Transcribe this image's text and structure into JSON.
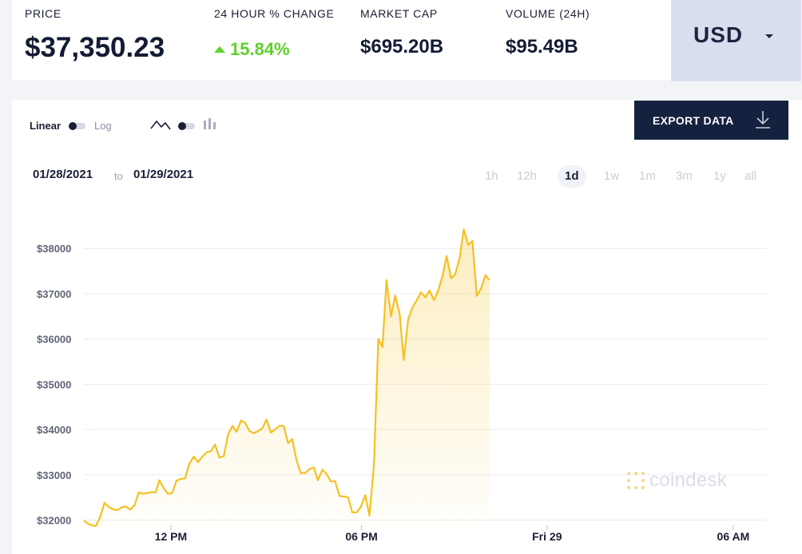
{
  "header": {
    "price_label": "PRICE",
    "price": "$37,350.23",
    "change_label": "24 HOUR % CHANGE",
    "change": "15.84%",
    "mcap_label": "MARKET CAP",
    "mcap": "$695.20B",
    "volume_label": "VOLUME (24H)",
    "volume": "$95.49B",
    "currency": "USD"
  },
  "controls": {
    "linear_label": "Linear",
    "log_label": "Log",
    "export_label": "EXPORT DATA",
    "date_from": "01/28/2021",
    "date_to_word": "to",
    "date_to": "01/29/2021",
    "periods": [
      "1h",
      "12h",
      "1d",
      "1w",
      "1m",
      "3m",
      "1y",
      "all"
    ],
    "active_period": "1d"
  },
  "colors": {
    "line": "#f5c022",
    "up": "#5ed12a",
    "export_bg": "#14213f"
  },
  "watermark": "coindesk",
  "chart_data": {
    "type": "line",
    "title": "",
    "xlabel": "",
    "ylabel": "",
    "y_ticks": [
      "$32000",
      "$33000",
      "$34000",
      "$35000",
      "$36000",
      "$37000",
      "$38000"
    ],
    "ylim": [
      31850,
      38550
    ],
    "x_ticks": [
      {
        "label": "12 PM",
        "x": 21.67
      },
      {
        "label": "06 PM",
        "x": 32.78
      },
      {
        "label": "Fri 29",
        "x": 43.59
      },
      {
        "label": "06 AM",
        "x": 54.44
      }
    ],
    "xlim": [
      16.6,
      56.4
    ],
    "grid": true,
    "series": [
      {
        "values": [
          [
            16.6,
            31990
          ],
          [
            16.84,
            31920
          ],
          [
            17.1,
            31880
          ],
          [
            17.3,
            31870
          ],
          [
            17.54,
            32060
          ],
          [
            17.8,
            32380
          ],
          [
            18.05,
            32290
          ],
          [
            18.3,
            32240
          ],
          [
            18.56,
            32220
          ],
          [
            18.8,
            32280
          ],
          [
            19.05,
            32300
          ],
          [
            19.3,
            32230
          ],
          [
            19.55,
            32330
          ],
          [
            19.8,
            32610
          ],
          [
            20.05,
            32580
          ],
          [
            20.3,
            32600
          ],
          [
            20.56,
            32620
          ],
          [
            20.78,
            32610
          ],
          [
            21.0,
            32880
          ],
          [
            21.26,
            32700
          ],
          [
            21.5,
            32580
          ],
          [
            21.75,
            32600
          ],
          [
            22.0,
            32870
          ],
          [
            22.25,
            32910
          ],
          [
            22.5,
            32920
          ],
          [
            22.74,
            33240
          ],
          [
            23.0,
            33400
          ],
          [
            23.25,
            33280
          ],
          [
            23.5,
            33400
          ],
          [
            23.76,
            33500
          ],
          [
            24.0,
            33520
          ],
          [
            24.24,
            33670
          ],
          [
            24.5,
            33380
          ],
          [
            24.75,
            33410
          ],
          [
            25.0,
            33890
          ],
          [
            25.26,
            34080
          ],
          [
            25.5,
            33950
          ],
          [
            25.76,
            34200
          ],
          [
            26.0,
            34150
          ],
          [
            26.24,
            33970
          ],
          [
            26.5,
            33920
          ],
          [
            26.74,
            33960
          ],
          [
            27.0,
            34030
          ],
          [
            27.24,
            34220
          ],
          [
            27.5,
            33930
          ],
          [
            27.76,
            34010
          ],
          [
            28.0,
            34080
          ],
          [
            28.24,
            34080
          ],
          [
            28.5,
            33700
          ],
          [
            28.74,
            33790
          ],
          [
            29.0,
            33310
          ],
          [
            29.24,
            33040
          ],
          [
            29.5,
            33040
          ],
          [
            29.76,
            33130
          ],
          [
            30.0,
            33160
          ],
          [
            30.24,
            32880
          ],
          [
            30.5,
            33110
          ],
          [
            30.74,
            33020
          ],
          [
            31.0,
            32850
          ],
          [
            31.24,
            32860
          ],
          [
            31.5,
            32530
          ],
          [
            31.76,
            32520
          ],
          [
            32.0,
            32500
          ],
          [
            32.24,
            32170
          ],
          [
            32.5,
            32170
          ],
          [
            32.74,
            32290
          ],
          [
            33.0,
            32550
          ],
          [
            33.24,
            32100
          ],
          [
            33.5,
            33200
          ],
          [
            33.76,
            36000
          ],
          [
            34.0,
            35820
          ],
          [
            34.24,
            37300
          ],
          [
            34.5,
            36500
          ],
          [
            34.74,
            36960
          ],
          [
            35.0,
            36560
          ],
          [
            35.24,
            35530
          ],
          [
            35.5,
            36440
          ],
          [
            35.74,
            36690
          ],
          [
            36.0,
            36860
          ],
          [
            36.24,
            37030
          ],
          [
            36.5,
            36920
          ],
          [
            36.74,
            37070
          ],
          [
            37.0,
            36860
          ],
          [
            37.24,
            37060
          ],
          [
            37.5,
            37390
          ],
          [
            37.74,
            37830
          ],
          [
            38.0,
            37340
          ],
          [
            38.24,
            37430
          ],
          [
            38.5,
            37800
          ],
          [
            38.74,
            38420
          ],
          [
            39.0,
            38080
          ],
          [
            39.24,
            38160
          ],
          [
            39.5,
            36950
          ],
          [
            39.74,
            37110
          ],
          [
            40.0,
            37410
          ],
          [
            40.24,
            37300
          ]
        ]
      }
    ]
  }
}
